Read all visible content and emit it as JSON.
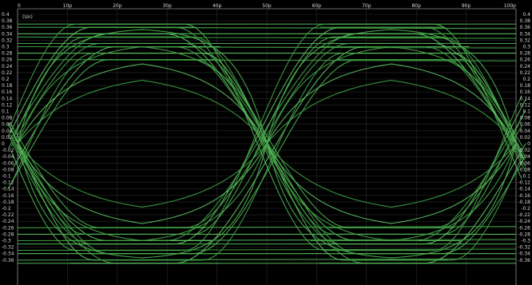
{
  "chart_data": {
    "type": "line",
    "title": "",
    "xlabel": "",
    "ylabel": "",
    "y_unit_label": "(Un)",
    "x_ticks": [
      "0",
      "10p",
      "20p",
      "30p",
      "40p",
      "50p",
      "60p",
      "70p",
      "80p",
      "90p",
      "100p"
    ],
    "xlim": [
      0,
      100
    ],
    "ylim": [
      -0.4,
      0.4
    ],
    "y_tick_values": [
      0.4,
      0.38,
      0.36,
      0.34,
      0.32,
      0.3,
      0.28,
      0.26,
      0.24,
      0.22,
      0.2,
      0.18,
      0.16,
      0.14,
      0.12,
      0.1,
      0.08,
      0.06,
      0.04,
      0.02,
      0,
      -0.02,
      -0.04,
      -0.06,
      -0.08,
      -0.1,
      -0.12,
      -0.14,
      -0.16,
      -0.18,
      -0.2,
      -0.22,
      -0.24,
      -0.26,
      -0.28,
      -0.3,
      -0.32,
      -0.34,
      -0.36
    ],
    "y_ticks_left": [
      "0.4",
      "0.38",
      "0.36",
      "0.34",
      "0.32",
      "0.3",
      "0.28",
      "0.26",
      "0.24",
      "0.22",
      "0.2",
      "0.18",
      "0.16",
      "0.14",
      "0.12",
      "0.1",
      "0.08",
      "0.06",
      "0.04",
      "0.02",
      "0",
      "-0.02",
      "-0.04",
      "-0.06",
      "-0.08",
      "-0.1",
      "-0.12",
      "-0.14",
      "-0.16",
      "-0.18",
      "-0.2",
      "-0.22",
      "-0.24",
      "-0.26",
      "-0.28",
      "-0.3",
      "-0.32",
      "-0.34",
      "-0.36"
    ],
    "y_ticks_right": [
      "0.4",
      "0.38",
      "0.36",
      "0.34",
      "0.32",
      "0.3",
      "0.28",
      "0.26",
      "0.24",
      "0.22",
      "0.2",
      "0.18",
      "0.16",
      "0.14",
      "0.12",
      "0.1",
      "0.08",
      "0.06",
      "0.04",
      "0.02",
      "0",
      "-0.02",
      "-0.04",
      "-0.06",
      "-0.08",
      "-0.1",
      "-0.12",
      "-0.14",
      "-0.16",
      "-0.18",
      "-0.2",
      "-0.22",
      "-0.24",
      "-0.26",
      "-0.28",
      "-0.3",
      "-0.32",
      "-0.34",
      "-0.36"
    ],
    "grid": true,
    "description_type": "eye diagram",
    "unit_interval": 50,
    "crossing_times": [
      0,
      50,
      100
    ],
    "crossing_level": 0,
    "high_rail_levels": [
      0.37,
      0.36,
      0.34,
      0.33,
      0.31,
      0.3,
      0.28,
      0.26
    ],
    "low_rail_levels": [
      -0.37,
      -0.36,
      -0.34,
      -0.33,
      -0.31,
      -0.3,
      -0.28,
      -0.26
    ],
    "rise_fall_time": 14,
    "settled_levels": [
      0.32,
      0.28,
      0.24,
      0.2
    ],
    "trace_color": "#4caf50",
    "background_color": "#000000",
    "grid_color": "#2a2a2a",
    "label_color": "#d8d8d8"
  }
}
